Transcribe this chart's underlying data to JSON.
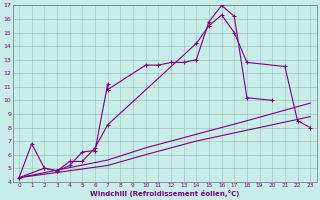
{
  "xlabel": "Windchill (Refroidissement éolien,°C)",
  "xlim": [
    -0.5,
    23.5
  ],
  "ylim": [
    4,
    17
  ],
  "xticks": [
    0,
    1,
    2,
    3,
    4,
    5,
    6,
    7,
    8,
    9,
    10,
    11,
    12,
    13,
    14,
    15,
    16,
    17,
    18,
    19,
    20,
    21,
    22,
    23
  ],
  "yticks": [
    4,
    5,
    6,
    7,
    8,
    9,
    10,
    11,
    12,
    13,
    14,
    15,
    16,
    17
  ],
  "bg_color": "#c8ece8",
  "line_color": "#800080",
  "grid_color": "#a0b8b8",
  "line1_x": [
    0,
    1,
    2,
    3,
    4,
    5,
    6,
    7,
    7,
    10,
    11,
    12,
    13,
    14,
    15,
    16,
    17,
    18,
    20
  ],
  "line1_y": [
    4.3,
    6.8,
    5.0,
    4.8,
    5.2,
    6.2,
    6.3,
    11.2,
    10.8,
    12.6,
    12.6,
    12.8,
    12.8,
    13.0,
    15.8,
    17.0,
    16.2,
    10.2,
    10.0
  ],
  "line2_x": [
    0,
    2,
    3,
    4,
    5,
    6,
    7,
    14,
    15,
    16,
    17,
    18,
    21,
    22,
    23
  ],
  "line2_y": [
    4.3,
    5.0,
    4.8,
    5.5,
    5.5,
    6.5,
    8.2,
    14.2,
    15.5,
    16.3,
    15.0,
    12.8,
    12.5,
    8.5,
    8.0
  ],
  "line3_x": [
    0,
    7,
    10,
    14,
    18,
    23
  ],
  "line3_y": [
    4.3,
    5.6,
    6.5,
    7.5,
    8.5,
    9.8
  ],
  "line4_x": [
    0,
    7,
    10,
    14,
    18,
    23
  ],
  "line4_y": [
    4.3,
    5.2,
    6.0,
    7.0,
    7.8,
    8.8
  ]
}
